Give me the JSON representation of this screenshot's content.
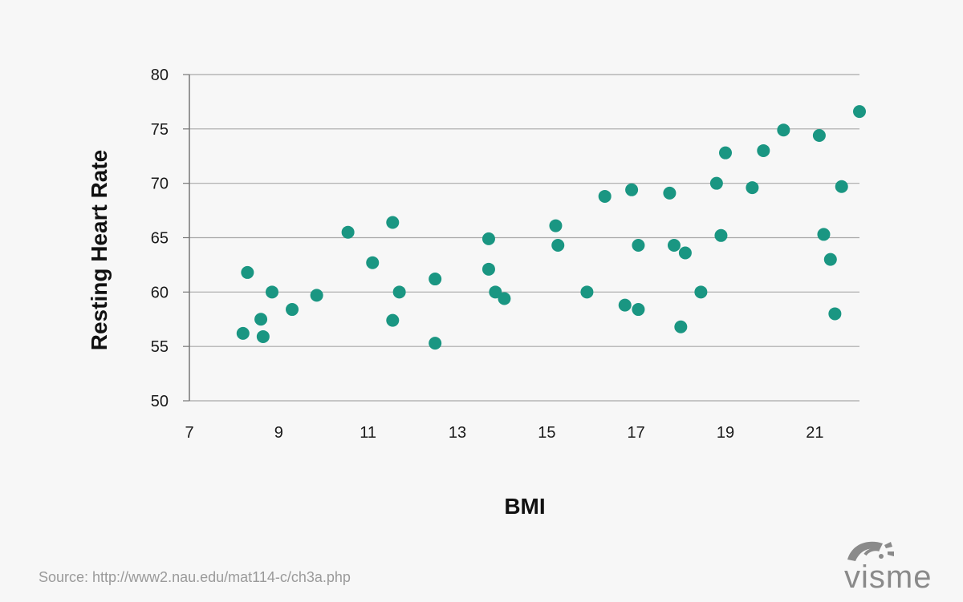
{
  "chart_data": {
    "type": "scatter",
    "xlabel": "BMI",
    "ylabel": "Resting Heart Rate",
    "xlim": [
      7,
      22
    ],
    "ylim": [
      50,
      80
    ],
    "xticks": [
      7,
      9,
      11,
      13,
      15,
      17,
      19,
      21
    ],
    "yticks": [
      50,
      55,
      60,
      65,
      70,
      75,
      80
    ],
    "grid": "horizontal",
    "marker_color": "#1a9682",
    "points": [
      {
        "x": 8.2,
        "y": 56.2
      },
      {
        "x": 8.3,
        "y": 61.8
      },
      {
        "x": 8.6,
        "y": 57.5
      },
      {
        "x": 8.65,
        "y": 55.9
      },
      {
        "x": 8.85,
        "y": 60.0
      },
      {
        "x": 9.3,
        "y": 58.4
      },
      {
        "x": 9.85,
        "y": 59.7
      },
      {
        "x": 10.55,
        "y": 65.5
      },
      {
        "x": 11.1,
        "y": 62.7
      },
      {
        "x": 11.55,
        "y": 66.4
      },
      {
        "x": 11.55,
        "y": 57.4
      },
      {
        "x": 11.7,
        "y": 60.0
      },
      {
        "x": 12.5,
        "y": 61.2
      },
      {
        "x": 12.5,
        "y": 55.3
      },
      {
        "x": 13.7,
        "y": 64.9
      },
      {
        "x": 13.7,
        "y": 62.1
      },
      {
        "x": 13.85,
        "y": 60.0
      },
      {
        "x": 14.05,
        "y": 59.4
      },
      {
        "x": 15.2,
        "y": 66.1
      },
      {
        "x": 15.25,
        "y": 64.3
      },
      {
        "x": 15.9,
        "y": 60.0
      },
      {
        "x": 16.3,
        "y": 68.8
      },
      {
        "x": 16.75,
        "y": 58.8
      },
      {
        "x": 16.9,
        "y": 69.4
      },
      {
        "x": 17.05,
        "y": 64.3
      },
      {
        "x": 17.05,
        "y": 58.4
      },
      {
        "x": 17.75,
        "y": 69.1
      },
      {
        "x": 17.85,
        "y": 64.3
      },
      {
        "x": 18.0,
        "y": 56.8
      },
      {
        "x": 18.1,
        "y": 63.6
      },
      {
        "x": 18.45,
        "y": 60.0
      },
      {
        "x": 18.8,
        "y": 70.0
      },
      {
        "x": 18.9,
        "y": 65.2
      },
      {
        "x": 19.0,
        "y": 72.8
      },
      {
        "x": 19.6,
        "y": 69.6
      },
      {
        "x": 19.85,
        "y": 73.0
      },
      {
        "x": 20.3,
        "y": 74.9
      },
      {
        "x": 21.1,
        "y": 74.4
      },
      {
        "x": 21.2,
        "y": 65.3
      },
      {
        "x": 21.35,
        "y": 63.0
      },
      {
        "x": 21.45,
        "y": 58.0
      },
      {
        "x": 21.6,
        "y": 69.7
      },
      {
        "x": 22.0,
        "y": 76.6
      }
    ]
  },
  "source": "Source: http://www2.nau.edu/mat114-c/ch3a.php",
  "logo": {
    "text": "visme",
    "icon": "visme-logo-icon"
  }
}
